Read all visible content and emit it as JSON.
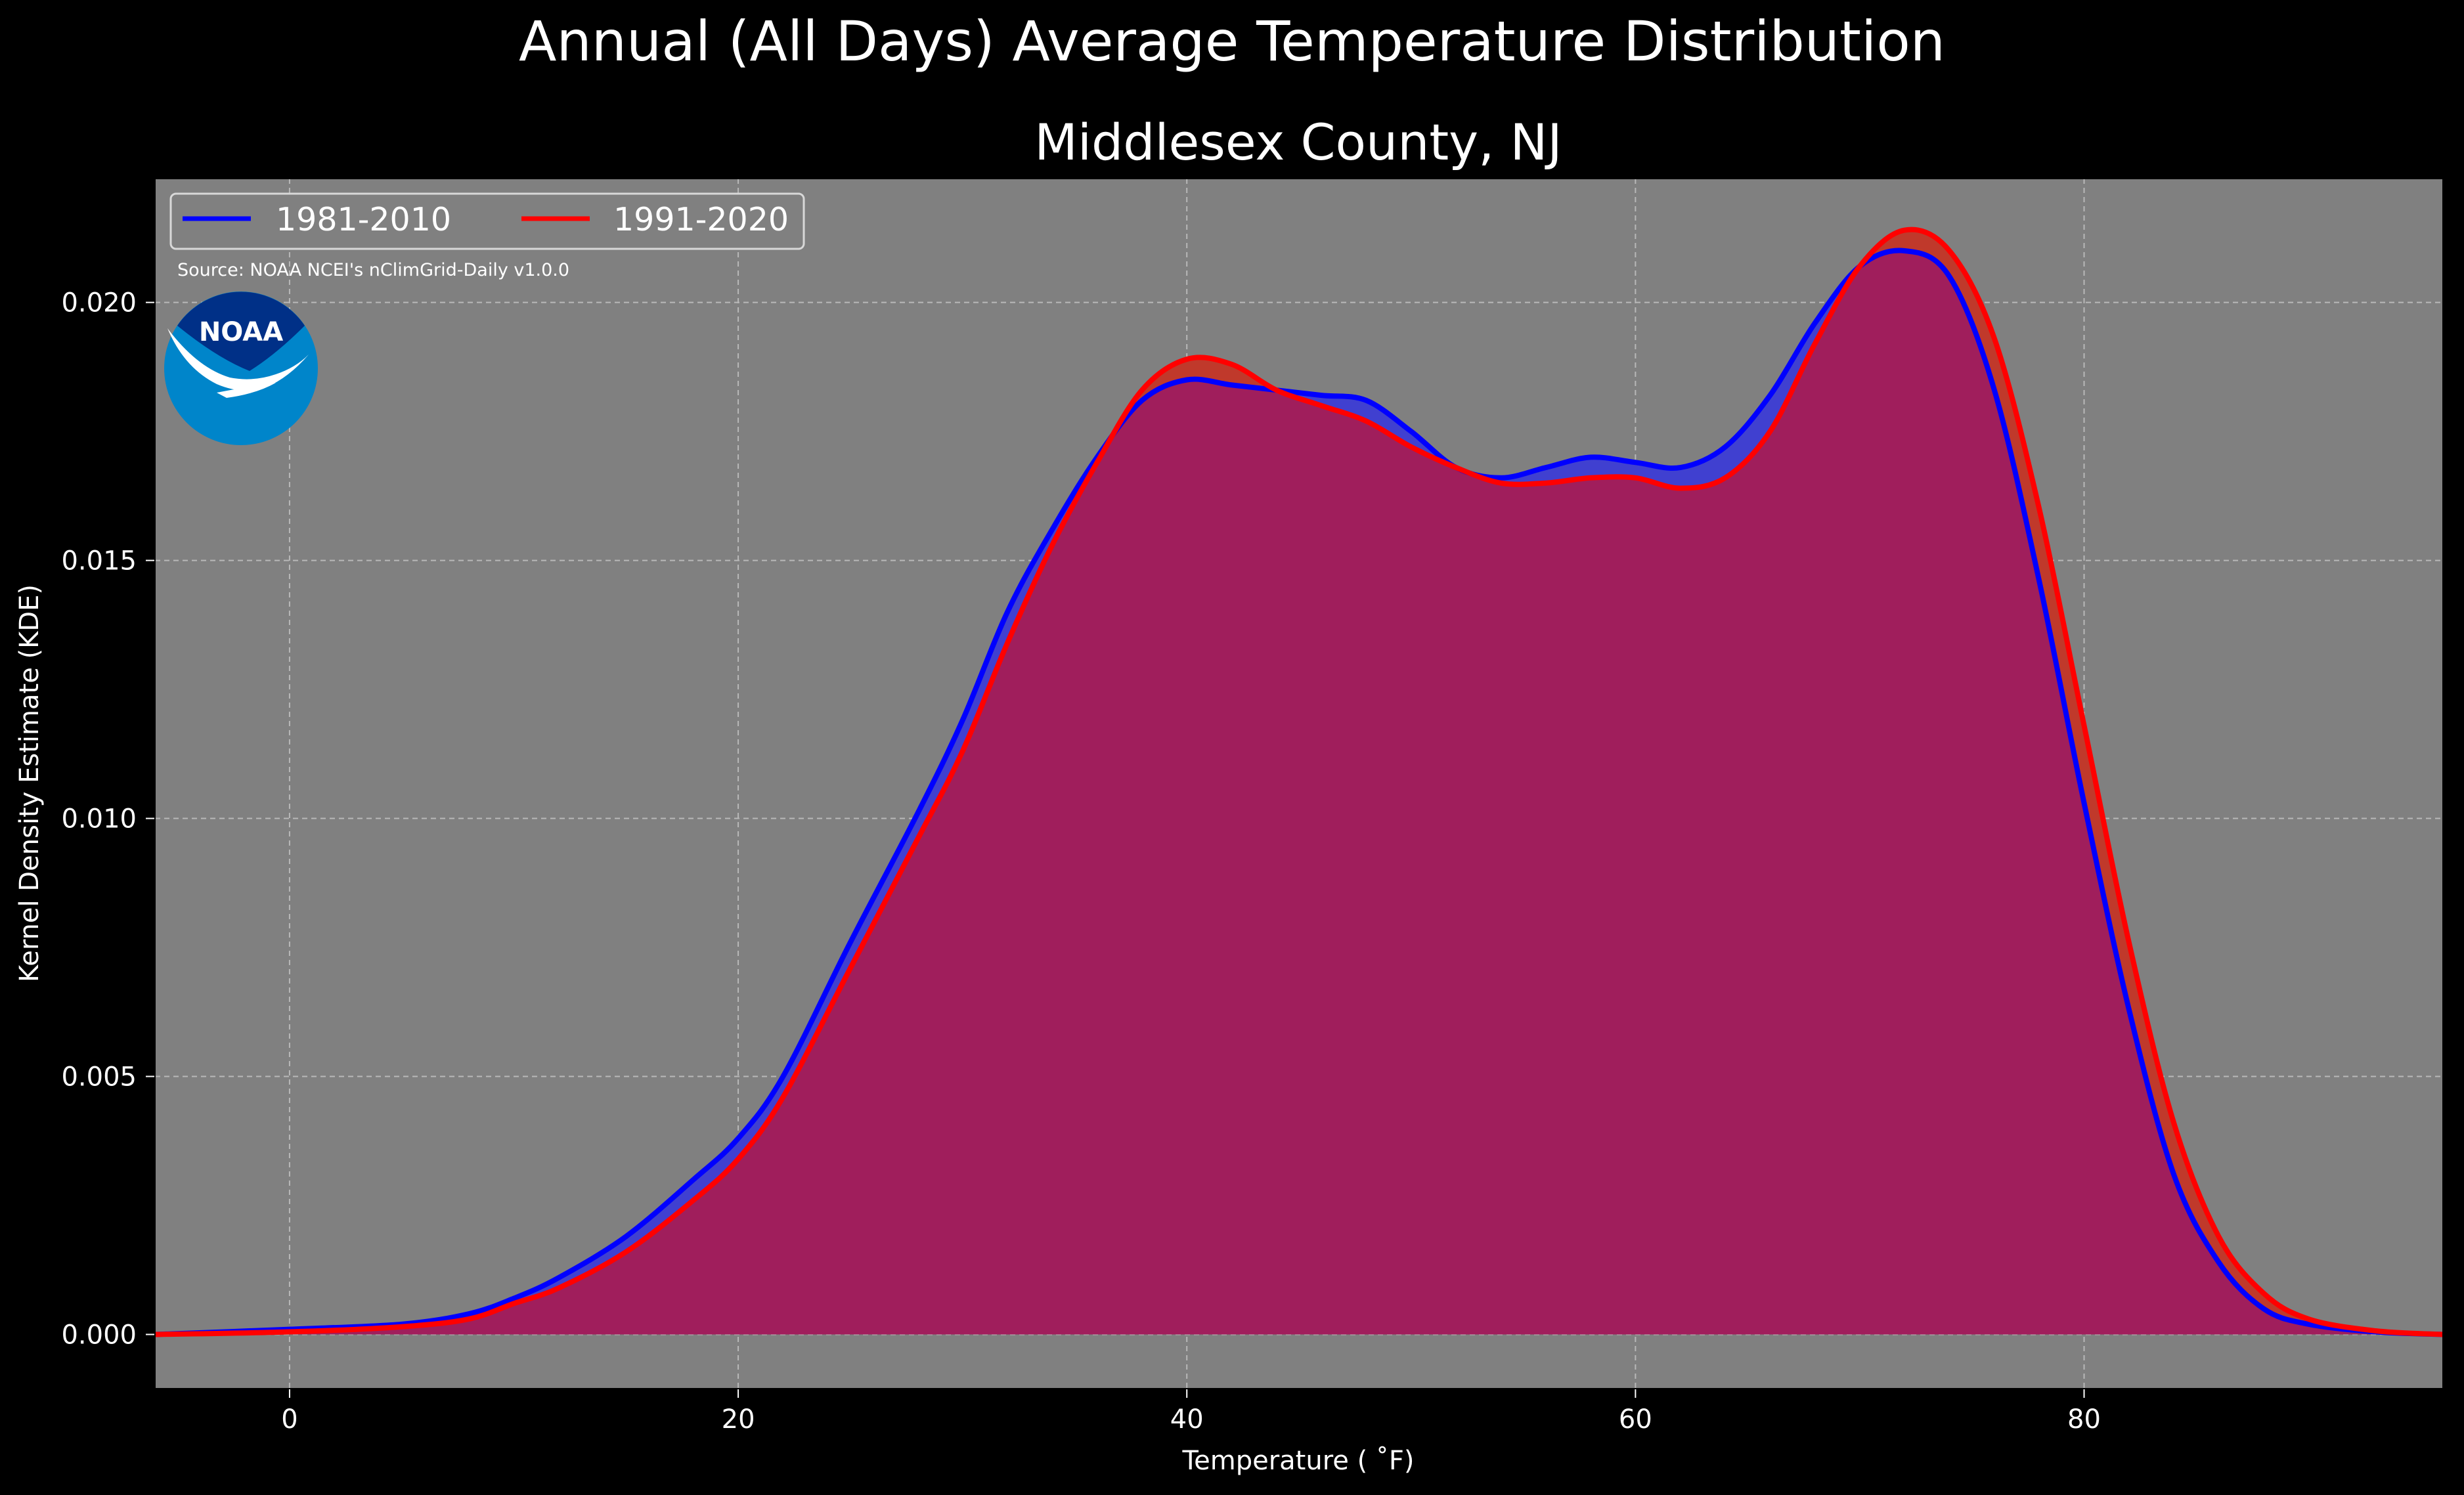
{
  "figure": {
    "suptitle": "Annual (All Days) Average Temperature Distribution",
    "background": "#000000",
    "plot_background": "#808080"
  },
  "source_note": "Source: NOAA NCEI's nClimGrid-Daily v1.0.0",
  "logo": {
    "text": "NOAA",
    "outer_color": "#0085ca",
    "inner_color": "#003087"
  },
  "chart_data": {
    "type": "area",
    "title": "Middlesex County, NJ",
    "xlabel": "Temperature ($^\\circ$F)",
    "xlabel_display": "Temperature ( ˚F)",
    "ylabel": "Kernel Density Estimate (KDE)",
    "xlim": [
      -6,
      96
    ],
    "ylim": [
      -0.00105,
      0.0224
    ],
    "xticks": [
      0,
      20,
      40,
      60,
      80
    ],
    "xtick_labels": [
      "0",
      "20",
      "40",
      "60",
      "80"
    ],
    "yticks": [
      0.0,
      0.005,
      0.01,
      0.015,
      0.02
    ],
    "ytick_labels": [
      "0.000",
      "0.005",
      "0.010",
      "0.015",
      "0.020"
    ],
    "grid": true,
    "legend_position": "top-left",
    "fill_between_color": "#a01e5c",
    "series": [
      {
        "name": "1981-2010",
        "color": "#0000ff",
        "fill_color": "#4040d0",
        "x": [
          -6,
          0,
          5,
          8,
          10,
          12,
          15,
          18,
          20,
          22,
          25,
          28,
          30,
          32,
          34,
          36,
          38,
          40,
          42,
          44,
          46,
          48,
          50,
          52,
          54,
          56,
          58,
          60,
          62,
          64,
          66,
          68,
          70,
          72,
          74,
          76,
          78,
          80,
          82,
          84,
          86,
          88,
          90,
          93,
          96
        ],
        "y": [
          0.0,
          0.0001,
          0.0002,
          0.0004,
          0.0007,
          0.0011,
          0.0019,
          0.003,
          0.0038,
          0.005,
          0.0076,
          0.0101,
          0.0119,
          0.014,
          0.0156,
          0.017,
          0.0181,
          0.0185,
          0.0184,
          0.0183,
          0.0182,
          0.0181,
          0.0175,
          0.0168,
          0.0166,
          0.0168,
          0.017,
          0.0169,
          0.0168,
          0.0172,
          0.0182,
          0.0196,
          0.0207,
          0.021,
          0.0205,
          0.0183,
          0.0146,
          0.0103,
          0.0063,
          0.0031,
          0.0014,
          0.0005,
          0.0002,
          5e-05,
          0.0
        ]
      },
      {
        "name": "1991-2020",
        "color": "#ff0000",
        "fill_color": "#c0392b",
        "x": [
          -6,
          0,
          5,
          8,
          10,
          12,
          15,
          18,
          20,
          22,
          25,
          28,
          30,
          32,
          34,
          36,
          38,
          40,
          42,
          44,
          46,
          48,
          50,
          52,
          54,
          56,
          58,
          60,
          62,
          64,
          66,
          68,
          70,
          72,
          74,
          76,
          78,
          80,
          82,
          84,
          86,
          88,
          90,
          93,
          96
        ],
        "y": [
          0.0,
          5e-05,
          0.00015,
          0.0003,
          0.0006,
          0.0009,
          0.0016,
          0.0026,
          0.0034,
          0.0046,
          0.0071,
          0.0096,
          0.0113,
          0.0134,
          0.0153,
          0.0169,
          0.0183,
          0.0189,
          0.0188,
          0.0183,
          0.018,
          0.0177,
          0.0172,
          0.0168,
          0.0165,
          0.0165,
          0.0166,
          0.0166,
          0.0164,
          0.0166,
          0.0175,
          0.0192,
          0.0207,
          0.0214,
          0.021,
          0.0193,
          0.016,
          0.0118,
          0.0076,
          0.0041,
          0.0019,
          0.0008,
          0.0003,
          7e-05,
          0.0
        ]
      }
    ]
  }
}
